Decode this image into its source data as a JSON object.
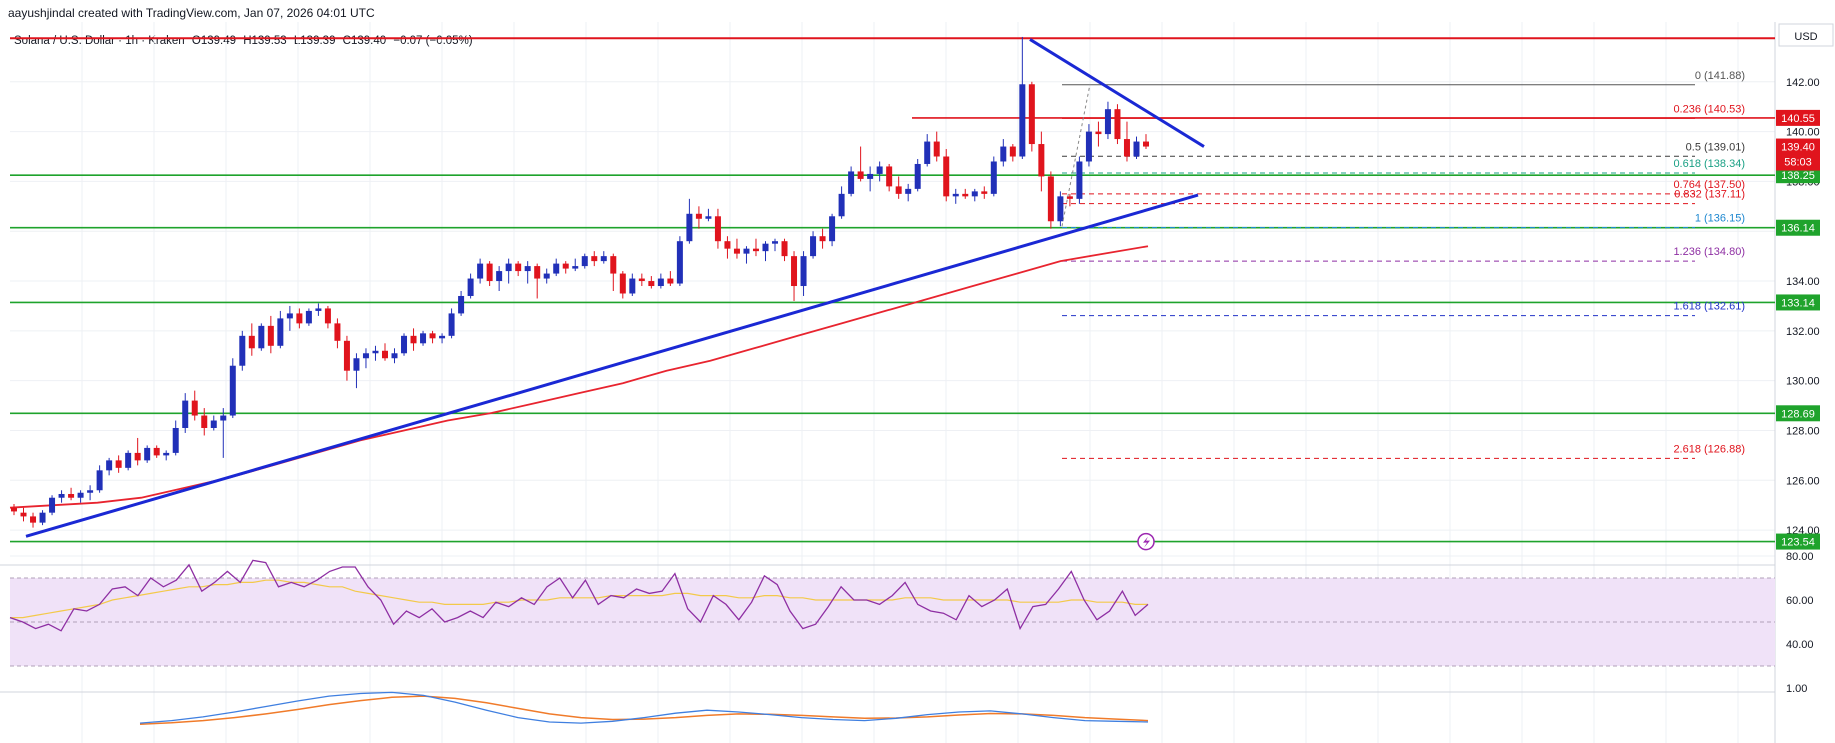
{
  "header": {
    "attribution": "aayushjindal created with TradingView.com, Jan 07, 2026 04:01 UTC"
  },
  "symbol": {
    "name": "Solana / U.S. Dollar · 1h · Kraken",
    "open": "O139.49",
    "high": "H139.53",
    "low": "L139.39",
    "close": "C139.40",
    "change": "−0.07 (−0.05%)"
  },
  "axis": {
    "currency": "USD",
    "ticks": [
      "142.00",
      "140.00",
      "138.00",
      "136.00",
      "134.00",
      "132.00",
      "130.00",
      "128.00",
      "126.00",
      "124.00"
    ],
    "rsi_ticks": [
      "80.00",
      "60.00",
      "40.00"
    ],
    "macd_ticks": [
      "1.00"
    ]
  },
  "colors": {
    "up": "#2130b8",
    "down": "#e0141d",
    "support": "#1fa32c",
    "resistance": "#e0141d",
    "trend": "#1a28d4",
    "ema": "#e8242f",
    "rsi": "#8e2fa3",
    "rsi_ma": "#f3c94a",
    "rsi_band": "#f0e2f8",
    "macd": "#3f7fe0",
    "macd_signal": "#f07b2a"
  },
  "chart_data": {
    "type": "candlestick",
    "title": "Solana / U.S. Dollar · 1h · Kraken",
    "ylim": [
      122.8,
      144.4
    ],
    "candles": [
      [
        124.9,
        125.05,
        124.6,
        124.75
      ],
      [
        124.7,
        124.9,
        124.35,
        124.55
      ],
      [
        124.55,
        124.7,
        124.1,
        124.3
      ],
      [
        124.3,
        124.8,
        124.2,
        124.7
      ],
      [
        124.7,
        125.4,
        124.6,
        125.3
      ],
      [
        125.3,
        125.6,
        125.1,
        125.45
      ],
      [
        125.45,
        125.7,
        125.2,
        125.3
      ],
      [
        125.3,
        125.6,
        125.1,
        125.5
      ],
      [
        125.5,
        125.8,
        125.2,
        125.6
      ],
      [
        125.6,
        126.6,
        125.5,
        126.4
      ],
      [
        126.4,
        126.9,
        126.2,
        126.8
      ],
      [
        126.8,
        127.0,
        126.3,
        126.5
      ],
      [
        126.5,
        127.2,
        126.4,
        127.1
      ],
      [
        127.1,
        127.7,
        126.6,
        126.8
      ],
      [
        126.8,
        127.4,
        126.7,
        127.3
      ],
      [
        127.3,
        127.4,
        126.9,
        127.0
      ],
      [
        127.0,
        127.2,
        126.8,
        127.1
      ],
      [
        127.1,
        128.4,
        127.0,
        128.1
      ],
      [
        128.1,
        129.5,
        127.9,
        129.2
      ],
      [
        129.2,
        129.6,
        128.4,
        128.6
      ],
      [
        128.6,
        128.9,
        127.8,
        128.1
      ],
      [
        128.1,
        128.6,
        128.0,
        128.4
      ],
      [
        128.4,
        128.9,
        126.9,
        128.6
      ],
      [
        128.6,
        130.9,
        128.5,
        130.6
      ],
      [
        130.6,
        132.0,
        130.4,
        131.8
      ],
      [
        131.8,
        132.3,
        131.0,
        131.3
      ],
      [
        131.3,
        132.3,
        131.2,
        132.2
      ],
      [
        132.2,
        132.6,
        131.1,
        131.4
      ],
      [
        131.4,
        132.8,
        131.3,
        132.5
      ],
      [
        132.5,
        133.0,
        132.0,
        132.7
      ],
      [
        132.7,
        132.9,
        132.1,
        132.3
      ],
      [
        132.3,
        132.9,
        132.2,
        132.8
      ],
      [
        132.8,
        133.1,
        132.6,
        132.9
      ],
      [
        132.9,
        133.0,
        132.1,
        132.3
      ],
      [
        132.3,
        132.5,
        131.3,
        131.6
      ],
      [
        131.6,
        131.8,
        130.0,
        130.4
      ],
      [
        130.4,
        131.1,
        129.7,
        130.9
      ],
      [
        130.9,
        131.3,
        130.5,
        131.1
      ],
      [
        131.1,
        131.4,
        130.8,
        131.2
      ],
      [
        131.2,
        131.5,
        130.8,
        130.9
      ],
      [
        130.9,
        131.3,
        130.7,
        131.1
      ],
      [
        131.1,
        131.9,
        131.0,
        131.8
      ],
      [
        131.8,
        132.1,
        131.2,
        131.5
      ],
      [
        131.5,
        132.0,
        131.4,
        131.9
      ],
      [
        131.9,
        132.0,
        131.5,
        131.7
      ],
      [
        131.7,
        131.9,
        131.5,
        131.8
      ],
      [
        131.8,
        132.9,
        131.7,
        132.7
      ],
      [
        132.7,
        133.6,
        132.6,
        133.4
      ],
      [
        133.4,
        134.3,
        133.3,
        134.1
      ],
      [
        134.1,
        134.9,
        133.9,
        134.7
      ],
      [
        134.7,
        134.8,
        133.8,
        134.0
      ],
      [
        134.0,
        134.6,
        133.6,
        134.4
      ],
      [
        134.4,
        134.9,
        133.9,
        134.7
      ],
      [
        134.7,
        134.8,
        134.2,
        134.4
      ],
      [
        134.4,
        134.8,
        133.9,
        134.6
      ],
      [
        134.6,
        134.7,
        133.3,
        134.1
      ],
      [
        134.1,
        134.5,
        133.9,
        134.3
      ],
      [
        134.3,
        134.9,
        134.2,
        134.7
      ],
      [
        134.7,
        134.8,
        134.3,
        134.5
      ],
      [
        134.5,
        134.9,
        134.4,
        134.6
      ],
      [
        134.6,
        135.1,
        134.5,
        135.0
      ],
      [
        135.0,
        135.2,
        134.6,
        134.8
      ],
      [
        134.8,
        135.2,
        134.7,
        135.0
      ],
      [
        135.0,
        135.1,
        133.6,
        134.3
      ],
      [
        134.3,
        134.4,
        133.3,
        133.5
      ],
      [
        133.5,
        134.3,
        133.4,
        134.1
      ],
      [
        134.1,
        134.3,
        133.8,
        134.0
      ],
      [
        134.0,
        134.2,
        133.7,
        133.8
      ],
      [
        133.8,
        134.3,
        133.7,
        134.1
      ],
      [
        134.1,
        134.4,
        133.8,
        133.9
      ],
      [
        133.9,
        135.8,
        133.8,
        135.6
      ],
      [
        135.6,
        137.3,
        135.5,
        136.7
      ],
      [
        136.7,
        137.0,
        136.1,
        136.5
      ],
      [
        136.5,
        136.9,
        136.4,
        136.6
      ],
      [
        136.6,
        136.9,
        135.3,
        135.6
      ],
      [
        135.6,
        135.8,
        134.9,
        135.3
      ],
      [
        135.3,
        135.7,
        134.9,
        135.1
      ],
      [
        135.1,
        135.4,
        134.7,
        135.3
      ],
      [
        135.3,
        135.7,
        135.0,
        135.2
      ],
      [
        135.2,
        135.6,
        134.8,
        135.5
      ],
      [
        135.5,
        135.7,
        135.2,
        135.6
      ],
      [
        135.6,
        135.7,
        134.8,
        135.0
      ],
      [
        135.0,
        135.2,
        133.2,
        133.8
      ],
      [
        133.8,
        135.2,
        133.4,
        135.0
      ],
      [
        135.0,
        136.0,
        134.9,
        135.8
      ],
      [
        135.8,
        136.1,
        135.3,
        135.6
      ],
      [
        135.6,
        136.7,
        135.4,
        136.6
      ],
      [
        136.6,
        137.8,
        136.5,
        137.5
      ],
      [
        137.5,
        138.6,
        137.4,
        138.4
      ],
      [
        138.4,
        139.4,
        138.0,
        138.1
      ],
      [
        138.1,
        138.6,
        137.6,
        138.3
      ],
      [
        138.3,
        138.8,
        138.0,
        138.6
      ],
      [
        138.6,
        138.7,
        137.6,
        137.8
      ],
      [
        137.8,
        138.2,
        137.3,
        137.5
      ],
      [
        137.5,
        137.9,
        137.2,
        137.7
      ],
      [
        137.7,
        138.9,
        137.6,
        138.7
      ],
      [
        138.7,
        139.9,
        138.6,
        139.6
      ],
      [
        139.6,
        140.0,
        138.8,
        139.0
      ],
      [
        139.0,
        139.3,
        137.2,
        137.4
      ],
      [
        137.4,
        137.7,
        137.1,
        137.5
      ],
      [
        137.5,
        137.7,
        137.3,
        137.4
      ],
      [
        137.4,
        137.7,
        137.2,
        137.6
      ],
      [
        137.6,
        137.8,
        137.3,
        137.5
      ],
      [
        137.5,
        139.0,
        137.4,
        138.8
      ],
      [
        138.8,
        139.7,
        138.6,
        139.4
      ],
      [
        139.4,
        139.5,
        138.8,
        139.0
      ],
      [
        139.0,
        143.8,
        138.9,
        141.9
      ],
      [
        141.9,
        142.0,
        139.2,
        139.5
      ],
      [
        139.5,
        140.0,
        137.6,
        138.2
      ],
      [
        138.2,
        138.4,
        136.1,
        136.4
      ],
      [
        136.4,
        137.6,
        136.2,
        137.4
      ],
      [
        137.4,
        137.5,
        137.0,
        137.3
      ],
      [
        137.3,
        139.0,
        137.1,
        138.8
      ],
      [
        138.8,
        140.3,
        138.6,
        140.0
      ],
      [
        140.0,
        140.4,
        139.4,
        139.9
      ],
      [
        139.9,
        141.2,
        139.7,
        140.9
      ],
      [
        140.9,
        141.1,
        139.5,
        139.7
      ],
      [
        139.7,
        140.4,
        138.8,
        139.0
      ],
      [
        139.0,
        139.8,
        138.9,
        139.6
      ],
      [
        139.6,
        139.9,
        139.3,
        139.4
      ]
    ],
    "ema": [
      124.9,
      125.0,
      125.1,
      125.3,
      125.7,
      126.1,
      126.6,
      127.1,
      127.6,
      128.0,
      128.4,
      128.7,
      129.1,
      129.5,
      129.9,
      130.4,
      130.8,
      131.3,
      131.8,
      132.3,
      132.8,
      133.3,
      133.8,
      134.3,
      134.8,
      135.1,
      135.4
    ],
    "rsi": [
      52,
      50,
      47,
      49,
      46,
      56,
      55,
      58,
      65,
      66,
      62,
      70,
      66,
      69,
      76,
      64,
      68,
      73,
      68,
      78,
      77,
      66,
      68,
      66,
      69,
      73,
      75,
      75,
      66,
      60,
      49,
      55,
      52,
      56,
      50,
      52,
      55,
      52,
      59,
      57,
      61,
      58,
      66,
      70,
      61,
      69,
      58,
      62,
      61,
      65,
      63,
      64,
      72,
      56,
      50,
      62,
      58,
      51,
      59,
      71,
      67,
      55,
      47,
      49,
      57,
      66,
      60,
      60,
      58,
      62,
      68,
      58,
      55,
      54,
      51,
      62,
      57,
      60,
      65,
      47,
      57,
      58,
      65,
      73,
      60,
      51,
      55,
      64,
      53,
      58
    ],
    "rsi_ma": [
      52,
      52,
      53,
      54,
      55,
      56,
      57,
      58,
      60,
      61,
      62,
      63,
      64,
      65,
      66,
      66,
      67,
      67,
      68,
      68,
      69,
      69,
      68,
      68,
      67,
      66,
      66,
      64,
      63,
      62,
      61,
      60,
      59,
      59,
      58,
      58,
      58,
      58,
      59,
      59,
      60,
      60,
      60,
      61,
      61,
      61,
      61,
      62,
      62,
      62,
      62,
      62,
      63,
      63,
      62,
      62,
      62,
      61,
      61,
      62,
      62,
      61,
      61,
      60,
      60,
      60,
      60,
      60,
      60,
      60,
      61,
      61,
      61,
      60,
      60,
      60,
      60,
      60,
      60,
      59,
      59,
      59,
      59,
      60,
      60,
      59,
      59,
      59,
      58,
      58
    ],
    "macd": [
      0.05,
      0.12,
      0.22,
      0.35,
      0.5,
      0.65,
      0.78,
      0.85,
      0.88,
      0.8,
      0.62,
      0.4,
      0.2,
      0.08,
      0.05,
      0.1,
      0.2,
      0.32,
      0.4,
      0.35,
      0.28,
      0.2,
      0.15,
      0.12,
      0.18,
      0.28,
      0.35,
      0.38,
      0.3,
      0.2,
      0.12,
      0.1,
      0.08
    ],
    "macd_signal": [
      0.02,
      0.06,
      0.12,
      0.2,
      0.3,
      0.42,
      0.55,
      0.66,
      0.75,
      0.78,
      0.72,
      0.6,
      0.45,
      0.3,
      0.2,
      0.15,
      0.16,
      0.2,
      0.26,
      0.3,
      0.29,
      0.26,
      0.22,
      0.18,
      0.19,
      0.22,
      0.27,
      0.31,
      0.3,
      0.26,
      0.2,
      0.16,
      0.12
    ]
  },
  "levels": {
    "resistance": [
      {
        "label": "140.55",
        "price": 140.55
      }
    ],
    "top_line": 143.75,
    "support": [
      {
        "label": "138.25",
        "price": 138.25
      },
      {
        "label": "136.14",
        "price": 136.14
      },
      {
        "label": "133.14",
        "price": 133.14
      },
      {
        "label": "128.69",
        "price": 128.69
      },
      {
        "label": "123.54",
        "price": 123.54
      }
    ],
    "current": {
      "label": "139.40",
      "countdown": "58:03",
      "price": 139.4
    }
  },
  "fib": [
    {
      "ratio": "0",
      "value": "(141.88)",
      "price": 141.88,
      "color": "#555555",
      "style": "solid"
    },
    {
      "ratio": "0.236",
      "value": "(140.53)",
      "price": 140.53,
      "color": "#e0141d",
      "style": "solid"
    },
    {
      "ratio": "0.5",
      "value": "(139.01)",
      "price": 139.01,
      "color": "#3a3a3a",
      "style": "dash"
    },
    {
      "ratio": "0.618",
      "value": "(138.34)",
      "price": 138.34,
      "color": "#1aa085",
      "style": "dash"
    },
    {
      "ratio": "0.764",
      "value": "(137.50)",
      "price": 137.5,
      "color": "#e0141d",
      "style": "dash"
    },
    {
      "ratio": "0.832",
      "value": "(137.11)",
      "price": 137.11,
      "color": "#e0141d",
      "style": "dash"
    },
    {
      "ratio": "1",
      "value": "(136.15)",
      "price": 136.15,
      "color": "#1e88d0",
      "style": "dash"
    },
    {
      "ratio": "1.236",
      "value": "(134.80)",
      "price": 134.8,
      "color": "#8e2fa3",
      "style": "dash"
    },
    {
      "ratio": "1.618",
      "value": "(132.61)",
      "price": 132.61,
      "color": "#2233c8",
      "style": "dash"
    },
    {
      "ratio": "2.618",
      "value": "(126.88)",
      "price": 126.88,
      "color": "#e0141d",
      "style": "dash"
    }
  ]
}
